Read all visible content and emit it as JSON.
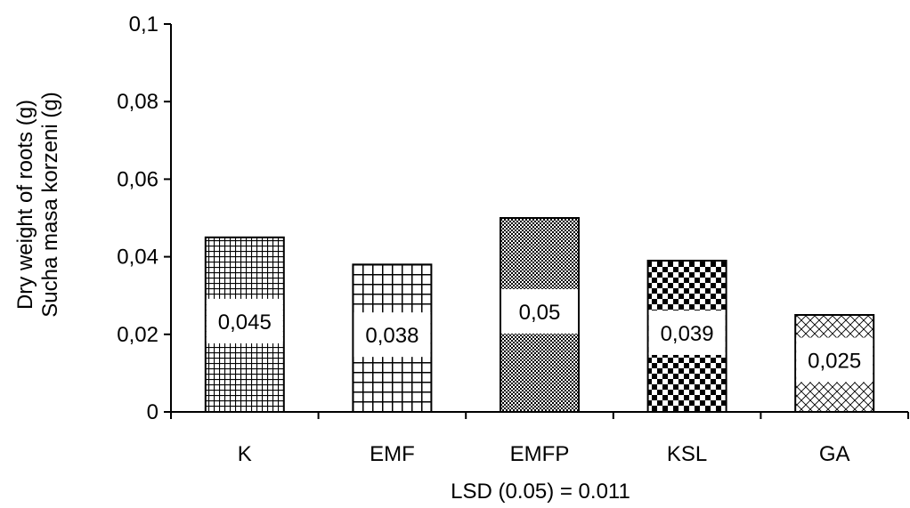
{
  "chart_data": {
    "type": "bar",
    "title": "",
    "ylabel_lines": [
      "Dry weight of roots (g)",
      "Sucha masa korzeni (g)"
    ],
    "xlabel": "LSD (0.05) = 0.011",
    "categories": [
      "K",
      "EMF",
      "EMFP",
      "KSL",
      "GA"
    ],
    "values": [
      0.045,
      0.038,
      0.05,
      0.039,
      0.025
    ],
    "value_labels": [
      "0,045",
      "0,038",
      "0,05",
      "0,039",
      "0,025"
    ],
    "ylim": [
      0,
      0.1
    ],
    "yticks": [
      0,
      0.02,
      0.04,
      0.06,
      0.08,
      0.1
    ],
    "ytick_labels": [
      "0",
      "0,02",
      "0,04",
      "0,06",
      "0,08",
      "0,1"
    ],
    "patterns": [
      "fine-grid",
      "coarse-grid",
      "fine-checker",
      "coarse-checker",
      "diagonal-cross"
    ],
    "grid": false,
    "legend": "none"
  }
}
